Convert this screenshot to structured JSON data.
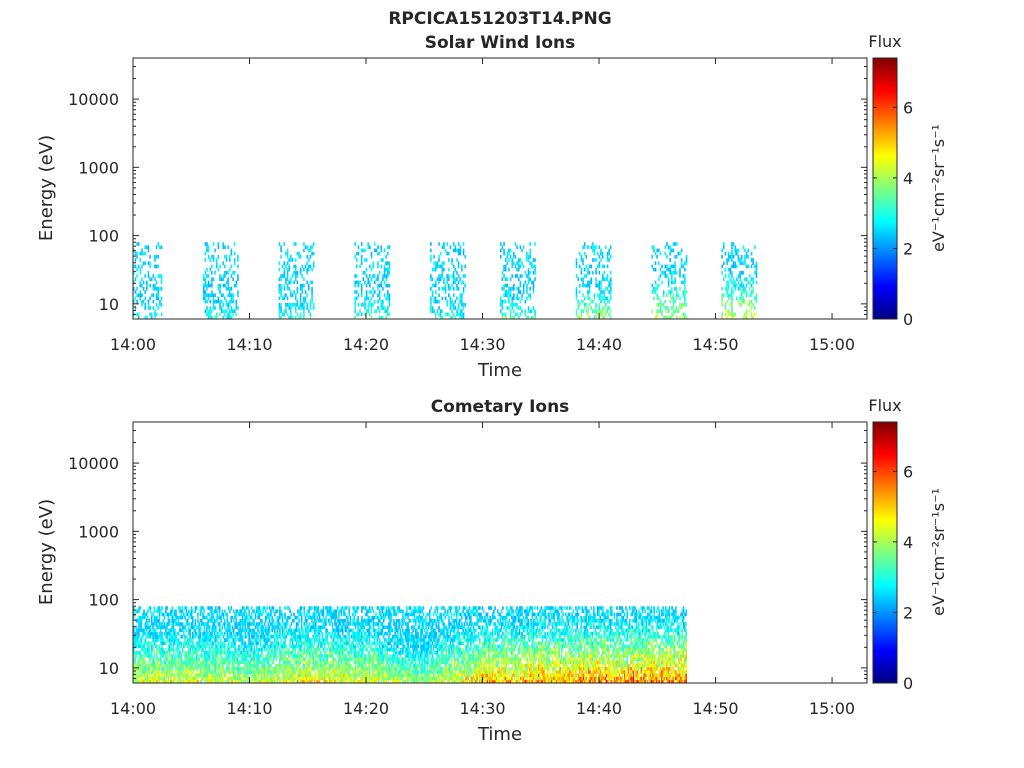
{
  "figure_title": "RPCICA151203T14.PNG",
  "colors": {
    "colormap": [
      "#00007f",
      "#0000ff",
      "#007fff",
      "#00ffff",
      "#7fff7f",
      "#ffff00",
      "#ff7f00",
      "#ff0000",
      "#7f0000"
    ]
  },
  "chart_data": [
    {
      "type": "heatmap",
      "title": "Solar Wind Ions",
      "xlabel": "Time",
      "ylabel": "Energy (eV)",
      "x_ticks": [
        "14:00",
        "14:10",
        "14:20",
        "14:30",
        "14:40",
        "14:50",
        "15:00"
      ],
      "xlim": [
        "14:00",
        "15:03"
      ],
      "y_scale": "log",
      "y_ticks": [
        "10",
        "100",
        "1000",
        "10000"
      ],
      "ylim": [
        6,
        40000
      ],
      "colorbar": {
        "label": "Flux",
        "unit": "eV⁻¹cm⁻²sr⁻¹s⁻¹",
        "ticks": [
          "0",
          "2",
          "4",
          "6"
        ],
        "range": [
          0,
          7.4
        ]
      },
      "bursts": [
        {
          "start": "14:00",
          "end": "14:02.5",
          "max_energy": 80,
          "peak_flux": 3.2
        },
        {
          "start": "14:06",
          "end": "14:09",
          "max_energy": 80,
          "peak_flux": 3.5
        },
        {
          "start": "14:12.5",
          "end": "14:15.5",
          "max_energy": 80,
          "peak_flux": 3.6
        },
        {
          "start": "14:19",
          "end": "14:22",
          "max_energy": 80,
          "peak_flux": 3.6
        },
        {
          "start": "14:25.5",
          "end": "14:28.5",
          "max_energy": 80,
          "peak_flux": 3.4
        },
        {
          "start": "14:31.5",
          "end": "14:34.5",
          "max_energy": 80,
          "peak_flux": 3.9
        },
        {
          "start": "14:38",
          "end": "14:41",
          "max_energy": 80,
          "peak_flux": 4.4
        },
        {
          "start": "14:44.5",
          "end": "14:47.5",
          "max_energy": 80,
          "peak_flux": 4.8
        },
        {
          "start": "14:50.5",
          "end": "14:53.5",
          "max_energy": 80,
          "peak_flux": 5.0
        }
      ]
    },
    {
      "type": "heatmap",
      "title": "Cometary Ions",
      "xlabel": "Time",
      "ylabel": "Energy (eV)",
      "x_ticks": [
        "14:00",
        "14:10",
        "14:20",
        "14:30",
        "14:40",
        "14:50",
        "15:00"
      ],
      "xlim": [
        "14:00",
        "15:03"
      ],
      "y_scale": "log",
      "y_ticks": [
        "10",
        "100",
        "1000",
        "10000"
      ],
      "ylim": [
        6,
        40000
      ],
      "colorbar": {
        "label": "Flux",
        "unit": "eV⁻¹cm⁻²sr⁻¹s⁻¹",
        "ticks": [
          "0",
          "2",
          "4",
          "6"
        ],
        "range": [
          0,
          7.4
        ]
      },
      "data_span": {
        "start": "14:00",
        "end": "14:47.5",
        "max_energy": 80
      },
      "flux_profile": [
        {
          "time": "14:00",
          "peak_flux": 5.5
        },
        {
          "time": "14:05",
          "peak_flux": 5.6
        },
        {
          "time": "14:10",
          "peak_flux": 5.4
        },
        {
          "time": "14:15",
          "peak_flux": 6.0
        },
        {
          "time": "14:20",
          "peak_flux": 5.7
        },
        {
          "time": "14:25",
          "peak_flux": 4.8
        },
        {
          "time": "14:30",
          "peak_flux": 6.4
        },
        {
          "time": "14:35",
          "peak_flux": 6.6
        },
        {
          "time": "14:40",
          "peak_flux": 6.9
        },
        {
          "time": "14:45",
          "peak_flux": 7.0
        },
        {
          "time": "14:47.5",
          "peak_flux": 7.0
        }
      ]
    }
  ]
}
